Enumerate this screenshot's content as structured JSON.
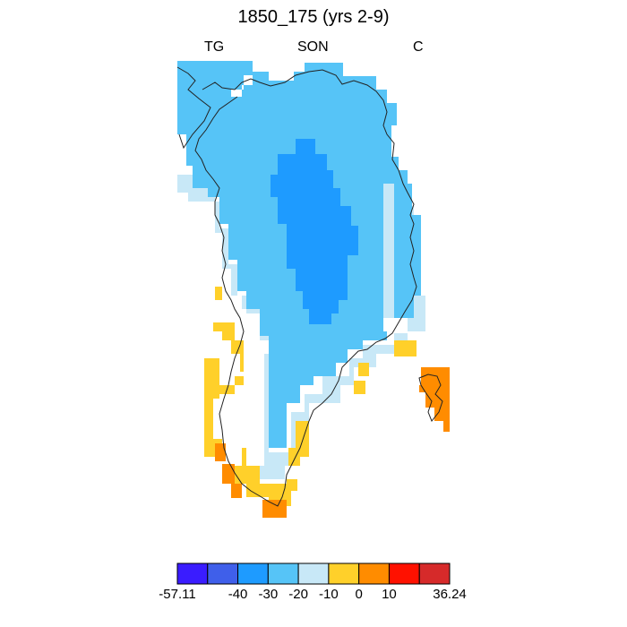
{
  "title": "1850_175 (yrs 2-9)",
  "corner_labels": {
    "left": "TG",
    "center": "SON",
    "right": "C"
  },
  "colorbar": {
    "colors": [
      "#3a1cff",
      "#3f5fea",
      "#1e9bff",
      "#56c4f7",
      "#c8e8f7",
      "#ffd02a",
      "#ff8c00",
      "#ff1100",
      "#d62a2a"
    ],
    "labels": [
      "-57.11",
      "-40",
      "-30",
      "-20",
      "-10",
      "0",
      "10",
      "36.24"
    ]
  },
  "colors": {
    "c_m30": "#1e9bff",
    "c_m20": "#56c4f7",
    "c_m10": "#c8e8f7",
    "c_0": "#ffd02a",
    "c_10": "#ff8c00",
    "outline": "#222222"
  }
}
